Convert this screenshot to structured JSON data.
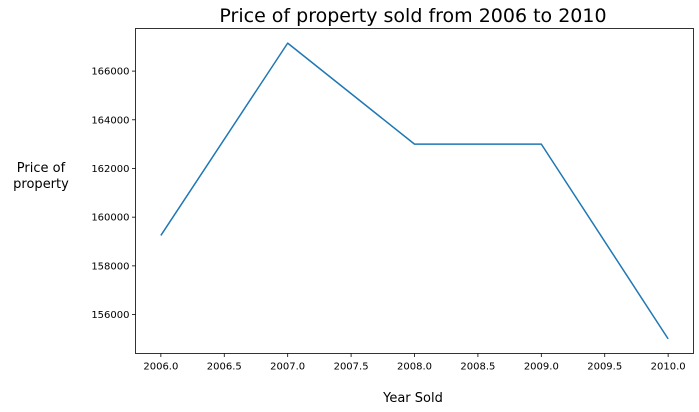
{
  "chart_data": {
    "type": "line",
    "title": "Price of property sold from 2006 to 2010",
    "xlabel": "Year Sold",
    "ylabel_lines": [
      "Price of",
      "property"
    ],
    "x": [
      2006.0,
      2007.0,
      2008.0,
      2009.0,
      2010.0
    ],
    "series": [
      {
        "values": [
          159250,
          167150,
          163000,
          163000,
          155000
        ],
        "color": "#1f77b4"
      }
    ],
    "xlim": [
      2005.8,
      2010.2
    ],
    "ylim": [
      154400,
      167750
    ],
    "xticks": [
      2006.0,
      2006.5,
      2007.0,
      2007.5,
      2008.0,
      2008.5,
      2009.0,
      2009.5,
      2010.0
    ],
    "xtick_labels": [
      "2006.0",
      "2006.5",
      "2007.0",
      "2007.5",
      "2008.0",
      "2008.5",
      "2009.0",
      "2009.5",
      "2010.0"
    ],
    "yticks": [
      156000,
      158000,
      160000,
      162000,
      164000,
      166000
    ],
    "ytick_labels": [
      "156000",
      "158000",
      "160000",
      "162000",
      "164000",
      "166000"
    ],
    "grid": false,
    "legend": false
  }
}
